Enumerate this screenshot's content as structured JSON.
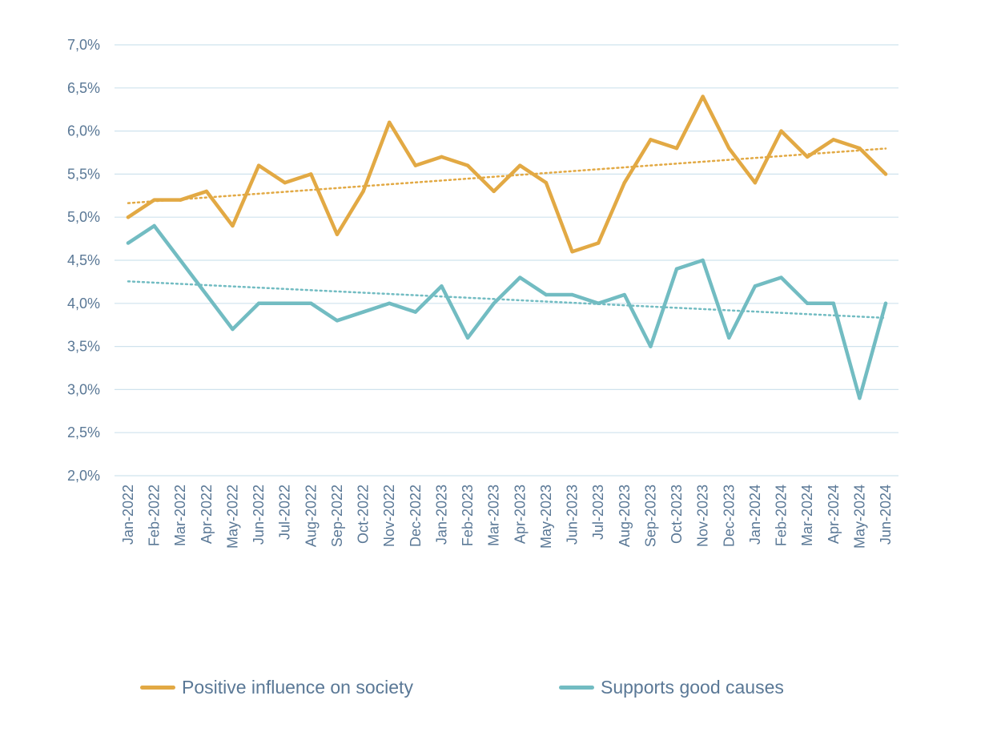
{
  "chart_data": {
    "type": "line",
    "title": "",
    "xlabel": "",
    "ylabel": "",
    "ylim": [
      0.02,
      0.07
    ],
    "y_ticks": [
      "2,0%",
      "2,5%",
      "3,0%",
      "3,5%",
      "4,0%",
      "4,5%",
      "5,0%",
      "5,5%",
      "6,0%",
      "6,5%",
      "7,0%"
    ],
    "grid": true,
    "legend_position": "bottom",
    "trendlines": true,
    "categories": [
      "Jan-2022",
      "Feb-2022",
      "Mar-2022",
      "Apr-2022",
      "May-2022",
      "Jun-2022",
      "Jul-2022",
      "Aug-2022",
      "Sep-2022",
      "Oct-2022",
      "Nov-2022",
      "Dec-2022",
      "Jan-2023",
      "Feb-2023",
      "Mar-2023",
      "Apr-2023",
      "May-2023",
      "Jun-2023",
      "Jul-2023",
      "Aug-2023",
      "Sep-2023",
      "Oct-2023",
      "Nov-2023",
      "Dec-2023",
      "Jan-2024",
      "Feb-2024",
      "Mar-2024",
      "Apr-2024",
      "May-2024",
      "Jun-2024"
    ],
    "series": [
      {
        "name": "Positive influence on society",
        "color": "#e2a944",
        "values": [
          0.05,
          0.052,
          0.052,
          0.053,
          0.049,
          0.056,
          0.054,
          0.055,
          0.048,
          0.053,
          0.061,
          0.056,
          0.057,
          0.056,
          0.053,
          0.056,
          0.054,
          0.046,
          0.047,
          0.054,
          0.059,
          0.058,
          0.064,
          0.058,
          0.054,
          0.06,
          0.057,
          0.059,
          0.058,
          0.055
        ]
      },
      {
        "name": "Supports good causes",
        "color": "#72bcc2",
        "values": [
          0.047,
          0.049,
          0.045,
          0.041,
          0.037,
          0.04,
          0.04,
          0.04,
          0.038,
          0.039,
          0.04,
          0.039,
          0.042,
          0.036,
          0.04,
          0.043,
          0.041,
          0.041,
          0.04,
          0.041,
          0.035,
          0.044,
          0.045,
          0.036,
          0.042,
          0.043,
          0.04,
          0.04,
          0.029,
          0.04
        ]
      }
    ]
  },
  "colors": {
    "axis_text": "#5a7896",
    "gridline": "#cfe3ee",
    "background": "#ffffff"
  }
}
